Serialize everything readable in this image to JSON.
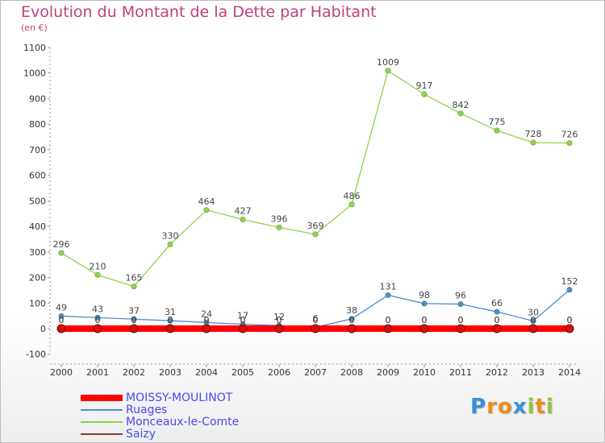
{
  "header": {
    "title": "Evolution du Montant de la Dette par Habitant",
    "subtitle": "(en €)"
  },
  "chart_data": {
    "type": "line",
    "title": "Evolution du Montant de la Dette par Habitant",
    "ylabel": "(en €)",
    "xlabel": "",
    "x": [
      "2000",
      "2001",
      "2002",
      "2003",
      "2004",
      "2005",
      "2006",
      "2007",
      "2008",
      "2009",
      "2010",
      "2011",
      "2012",
      "2013",
      "2014"
    ],
    "ylim": [
      -100,
      1100
    ],
    "yticks": [
      -100,
      0,
      100,
      200,
      300,
      400,
      500,
      600,
      700,
      800,
      900,
      1000,
      1100
    ],
    "grid": false,
    "legend_position": "bottom-left",
    "series": [
      {
        "name": "MOISSY-MOULINOT",
        "color": "#ff0000",
        "values": [
          0,
          0,
          0,
          0,
          0,
          0,
          0,
          0,
          0,
          0,
          0,
          0,
          0,
          0,
          0
        ]
      },
      {
        "name": "Ruages",
        "color": "#4a8fd0",
        "values": [
          49,
          43,
          37,
          31,
          24,
          17,
          12,
          6,
          38,
          131,
          98,
          96,
          66,
          30,
          152
        ]
      },
      {
        "name": "Monceaux-le-Comte",
        "color": "#8ed34a",
        "values": [
          296,
          210,
          165,
          330,
          464,
          427,
          396,
          369,
          486,
          1009,
          917,
          842,
          775,
          728,
          726
        ]
      },
      {
        "name": "Saizy",
        "color": "#8a3a3a",
        "values": [
          0,
          0,
          0,
          0,
          0,
          0,
          0,
          0,
          0,
          0,
          0,
          0,
          0,
          0,
          0
        ]
      }
    ],
    "value_labels": {
      "MOISSY-MOULINOT": [
        "0",
        "0",
        "0",
        "0",
        "0",
        "0",
        "0",
        "0",
        "0",
        "0",
        "0",
        "0",
        "0",
        "0",
        "0"
      ],
      "Ruages": [
        "49",
        "43",
        "37",
        "31",
        "24",
        "17",
        "12",
        "6",
        "38",
        "131",
        "98",
        "96",
        "66",
        "30",
        "152"
      ],
      "Monceaux-le-Comte": [
        "296",
        "210",
        "165",
        "330",
        "464",
        "427",
        "396",
        "369",
        "486",
        "1009",
        "917",
        "842",
        "775",
        "728",
        "726"
      ],
      "Saizy": [
        "0",
        "0",
        "0",
        "0",
        "0",
        "0",
        "0",
        "0",
        "0",
        "0",
        "0",
        "0",
        "0",
        "0",
        "0"
      ]
    }
  },
  "legend": [
    {
      "label": "MOISSY-MOULINOT",
      "color": "#ff0000"
    },
    {
      "label": "Ruages",
      "color": "#4a8fd0"
    },
    {
      "label": "Monceaux-le-Comte",
      "color": "#8ed34a"
    },
    {
      "label": "Saizy",
      "color": "#8a3a3a"
    }
  ],
  "logo": {
    "text": "Proxiti",
    "letters": [
      "P",
      "r",
      "o",
      "x",
      "i",
      "t",
      "i"
    ],
    "colors": [
      "#3a8fd8",
      "#f08a1a",
      "#f08a1a",
      "#3a8fd8",
      "#8ec83a",
      "#f08a1a",
      "#8ec83a"
    ]
  }
}
